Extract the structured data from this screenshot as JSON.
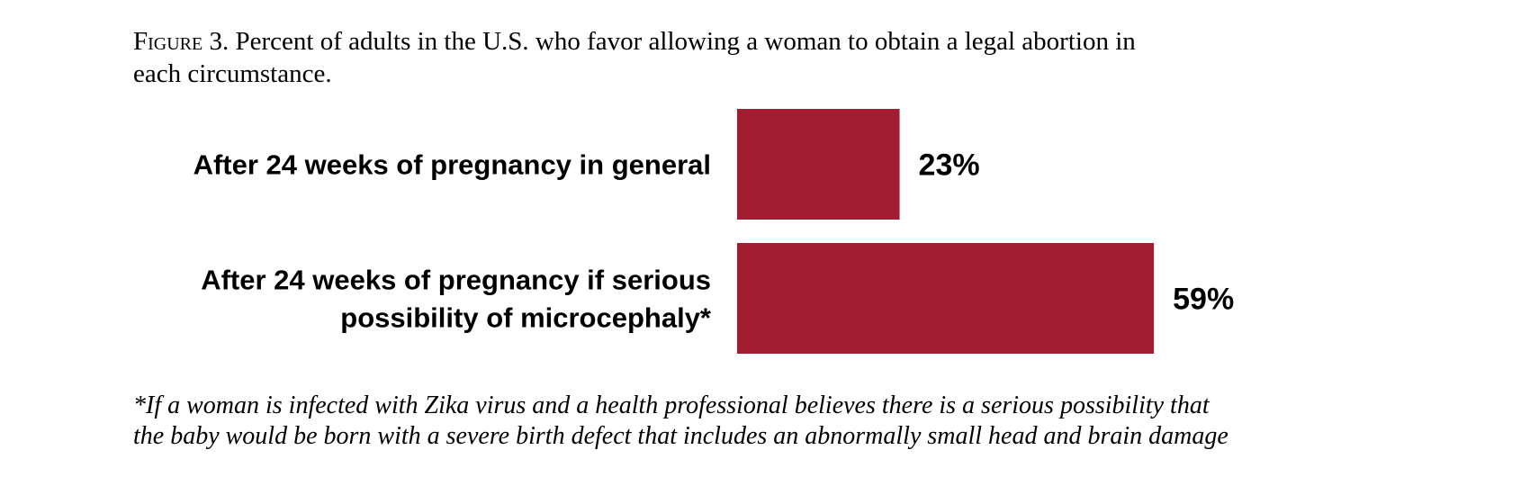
{
  "caption": {
    "figure_word": "Figure",
    "figure_rest": " 3. Percent of adults in the U.S. who favor allowing a woman to obtain a legal abortion in",
    "line2": "each circumstance."
  },
  "chart_data": {
    "type": "bar",
    "orientation": "horizontal",
    "categories": [
      [
        "After 24 weeks of pregnancy in general"
      ],
      [
        "After 24 weeks of pregnancy if serious",
        "possibility of microcephaly*"
      ]
    ],
    "values": [
      23,
      59
    ],
    "value_labels": [
      "23%",
      "59%"
    ],
    "xlim": [
      0,
      100
    ],
    "bar_color": "#a31d32",
    "grid": false,
    "legend": "none"
  },
  "footnote": {
    "line1": "*If a woman is infected with Zika virus and a health professional believes there is a serious possibility that",
    "line2": "the baby would be born with a severe birth defect that includes an abnormally small head and brain damage"
  }
}
